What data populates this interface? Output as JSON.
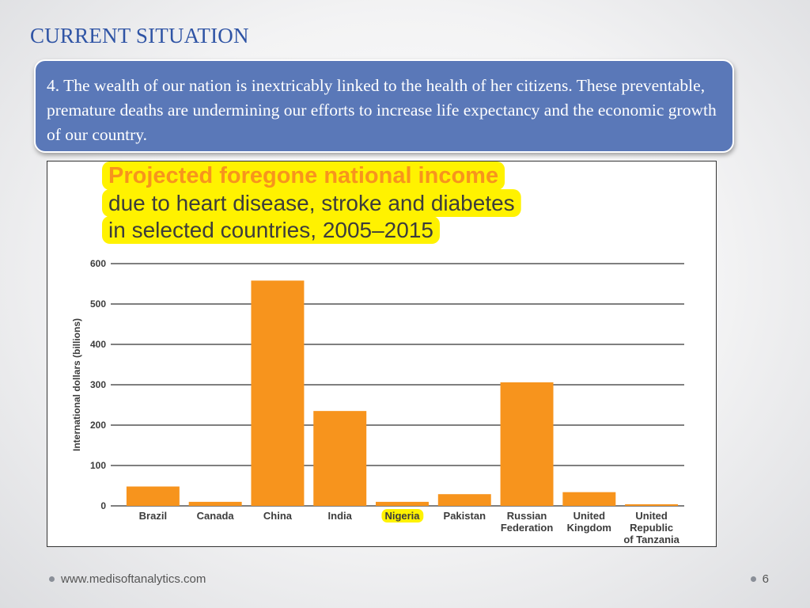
{
  "slide": {
    "title": "CURRENT SITUATION",
    "callout": "4. The wealth of our nation is inextricably linked to the health of her citizens. These preventable, premature deaths are undermining our efforts to increase life expectancy and the economic growth of our country.",
    "footer_url": "www.medisoftanalytics.com",
    "page_number": "6"
  },
  "chart_data": {
    "type": "bar",
    "title": "Projected foregone national income",
    "subtitle_lines": [
      "due to heart disease, stroke and diabetes",
      "in selected countries, 2005–2015"
    ],
    "ylabel": "International dollars (billions)",
    "xlabel": "",
    "ylim": [
      0,
      600
    ],
    "yticks": [
      0,
      100,
      200,
      300,
      400,
      500,
      600
    ],
    "grid": true,
    "categories": [
      [
        "Brazil"
      ],
      [
        "Canada"
      ],
      [
        "China"
      ],
      [
        "India"
      ],
      [
        "Nigeria"
      ],
      [
        "Pakistan"
      ],
      [
        "Russian",
        "Federation"
      ],
      [
        "United",
        "Kingdom"
      ],
      [
        "United",
        "Republic",
        "of Tanzania"
      ]
    ],
    "values": [
      48,
      10,
      558,
      235,
      10,
      29,
      306,
      34,
      4
    ],
    "highlighted_category": "Nigeria",
    "colors": {
      "bar": "#f7941d",
      "highlight": "#fff200",
      "title": "#f7941d",
      "text": "#3c3c3c",
      "grid": "#555555"
    }
  }
}
